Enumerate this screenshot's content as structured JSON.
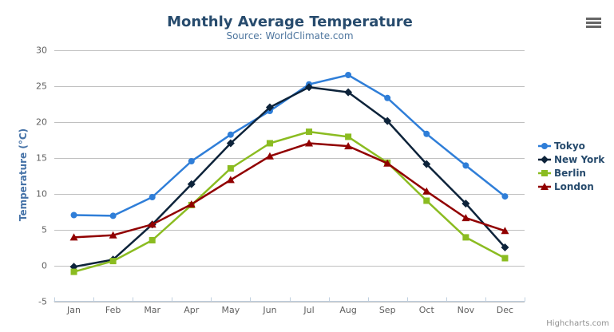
{
  "chart": {
    "title": "Monthly Average Temperature",
    "subtitle": "Source: WorldClimate.com",
    "ylabel": "Temperature (°C)",
    "credit": "Highcharts.com",
    "menu_icon": "hamburger-icon"
  },
  "colors": {
    "title": "#274b6d",
    "subtitle": "#4d759e",
    "axis_title": "#4572a7",
    "tick_label": "#606060",
    "grid_line": "#c0c0c0",
    "axis_line": "#c0d0e0",
    "legend_text": "#274b6d",
    "credit_text": "#909090",
    "menu_icon": "#666666"
  },
  "chart_data": {
    "type": "line",
    "title": "Monthly Average Temperature",
    "subtitle": "Source: WorldClimate.com",
    "xlabel": "",
    "ylabel": "Temperature (°C)",
    "categories": [
      "Jan",
      "Feb",
      "Mar",
      "Apr",
      "May",
      "Jun",
      "Jul",
      "Aug",
      "Sep",
      "Oct",
      "Nov",
      "Dec"
    ],
    "ylim": [
      -5,
      30
    ],
    "ytick_step": 5,
    "grid": true,
    "legend_position": "right-middle",
    "series": [
      {
        "name": "Tokyo",
        "color": "#2f7ed8",
        "marker": "circle",
        "values": [
          7.0,
          6.9,
          9.5,
          14.5,
          18.2,
          21.5,
          25.2,
          26.5,
          23.3,
          18.3,
          13.9,
          9.6
        ]
      },
      {
        "name": "New York",
        "color": "#0d233a",
        "marker": "diamond",
        "values": [
          -0.2,
          0.8,
          5.7,
          11.3,
          17.0,
          22.0,
          24.8,
          24.1,
          20.1,
          14.1,
          8.6,
          2.5
        ]
      },
      {
        "name": "Berlin",
        "color": "#8bbc21",
        "marker": "square",
        "values": [
          -0.9,
          0.6,
          3.5,
          8.4,
          13.5,
          17.0,
          18.6,
          17.9,
          14.3,
          9.0,
          3.9,
          1.0
        ]
      },
      {
        "name": "London",
        "color": "#910000",
        "marker": "triangle",
        "values": [
          3.9,
          4.2,
          5.7,
          8.5,
          11.9,
          15.2,
          17.0,
          16.6,
          14.2,
          10.3,
          6.6,
          4.8
        ]
      }
    ]
  }
}
